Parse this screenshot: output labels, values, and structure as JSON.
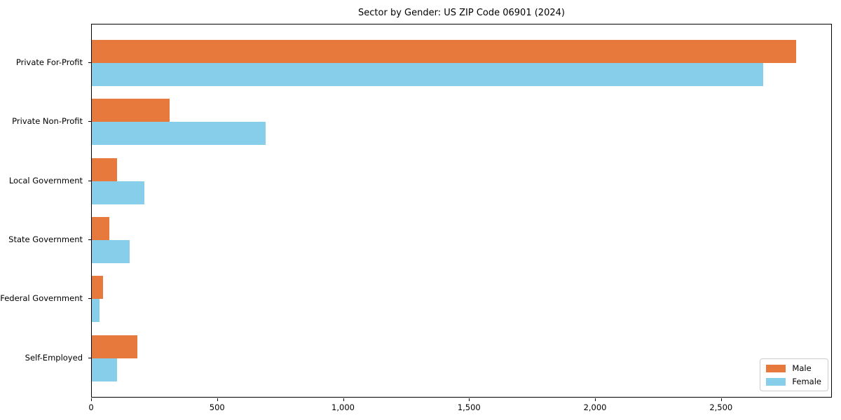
{
  "title": "Sector by Gender: US ZIP Code 06901 (2024)",
  "chart_data": {
    "type": "bar",
    "orientation": "horizontal",
    "title": "Sector by Gender: US ZIP Code 06901 (2024)",
    "categories": [
      "Private For-Profit",
      "Private Non-Profit",
      "Local Government",
      "State Government",
      "Federal Government",
      "Self-Employed"
    ],
    "series": [
      {
        "name": "Male",
        "color": "#E8793C",
        "values": [
          2800,
          310,
          100,
          70,
          45,
          180
        ]
      },
      {
        "name": "Female",
        "color": "#87CEEB",
        "values": [
          2670,
          690,
          210,
          150,
          30,
          100
        ]
      }
    ],
    "xlabel": "",
    "ylabel": "",
    "xlim": [
      0,
      2940
    ],
    "xticks": [
      {
        "value": 0,
        "label": "0"
      },
      {
        "value": 500,
        "label": "500"
      },
      {
        "value": 1000,
        "label": "1,000"
      },
      {
        "value": 1500,
        "label": "1,500"
      },
      {
        "value": 2000,
        "label": "2,000"
      },
      {
        "value": 2500,
        "label": "2,500"
      }
    ],
    "legend": {
      "position": "lower right"
    },
    "grid": false,
    "axis_color": "#000000",
    "background_color": "#ffffff"
  }
}
